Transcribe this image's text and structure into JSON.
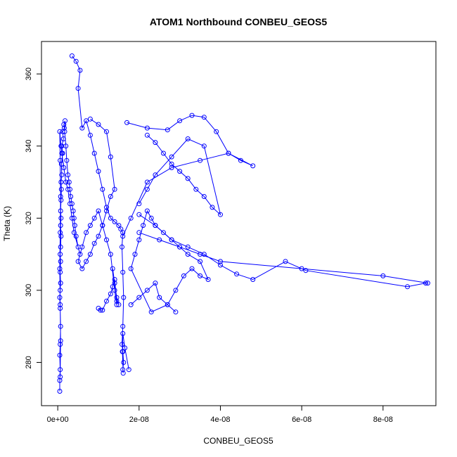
{
  "chart_data": {
    "type": "scatter",
    "title": "ATOM1 Northbound CONBEU_GEOS5",
    "xlabel": "CONBEU_GEOS5",
    "ylabel": "Theta (K)",
    "xlim": [
      -4e-09,
      9.3e-08
    ],
    "ylim": [
      268,
      369
    ],
    "x_ticks": [
      0,
      2e-08,
      4e-08,
      6e-08,
      8e-08
    ],
    "x_tick_labels": [
      "0e+00",
      "2e-08",
      "4e-08",
      "6e-08",
      "8e-08"
    ],
    "y_ticks": [
      280,
      300,
      320,
      340,
      360
    ],
    "y_tick_labels": [
      "280",
      "300",
      "320",
      "340",
      "360"
    ],
    "grid": false,
    "series": [
      {
        "color": "#0000ff",
        "marker": "open-circle",
        "connected": true,
        "x": [
          5e-10,
          5e-10,
          6e-10,
          5e-10,
          6e-10,
          7e-10,
          6e-10,
          5e-10,
          6e-10,
          7e-10,
          6e-10,
          7e-10,
          6e-10,
          7e-10,
          8e-10,
          7e-10,
          8e-10,
          7e-10,
          8e-10,
          9e-10,
          8e-10,
          1e-09,
          9e-10,
          1.2e-09,
          1e-09,
          1.4e-09,
          1.2e-09,
          1.6e-09,
          1.5e-09,
          1.8e-09,
          1.7e-09,
          2e-09,
          2.2e-09,
          2.5e-09,
          2.8e-09,
          3e-09,
          3.2e-09,
          3.5e-09,
          3.8e-09,
          4e-09,
          4.2e-09,
          4.5e-09,
          5e-09,
          5.5e-09,
          4e-09,
          3.5e-09,
          3e-09,
          2.5e-09,
          2e-09,
          1.5e-09,
          1e-09,
          8e-10,
          5e-10,
          6e-10,
          7e-10,
          6e-10,
          5e-10,
          6e-10,
          7e-10,
          6e-10
        ],
        "y": [
          272,
          275,
          278,
          282,
          285,
          290,
          295,
          298,
          300,
          302,
          305,
          308,
          310,
          312,
          315,
          318,
          320,
          322,
          325,
          328,
          330,
          332,
          335,
          338,
          340,
          342,
          344,
          345,
          346,
          347,
          344,
          340,
          336,
          332,
          330,
          328,
          326,
          324,
          322,
          320,
          318,
          315,
          312,
          310,
          316,
          320,
          324,
          328,
          330,
          334,
          338,
          340,
          344,
          336,
          326,
          316,
          306,
          296,
          286,
          276
        ]
      },
      {
        "color": "#0000ff",
        "marker": "open-circle",
        "connected": true,
        "x": [
          3.5e-09,
          4.5e-09,
          5.5e-09,
          5e-09,
          6e-09,
          7e-09,
          8e-09,
          9e-09,
          1e-08,
          1.1e-08,
          1.2e-08,
          1.3e-08,
          1.4e-08,
          1.5e-08,
          1.55e-08,
          1.6e-08,
          1.58e-08,
          1.6e-08,
          1.62e-08,
          1.6e-08,
          1.58e-08,
          1.6e-08,
          1.62e-08,
          1.6e-08,
          1.61e-08,
          1.59e-08,
          1.6e-08,
          1.65e-08,
          1.75e-08
        ],
        "y": [
          365,
          363.5,
          361,
          356,
          345,
          347,
          343,
          338,
          333,
          328,
          323,
          320,
          319,
          318,
          317,
          316,
          312,
          305,
          298,
          290,
          285,
          283,
          280,
          278,
          277,
          283,
          288,
          284,
          278
        ]
      },
      {
        "color": "#0000ff",
        "marker": "open-circle",
        "connected": true,
        "x": [
          8e-09,
          1e-08,
          1.2e-08,
          1.3e-08,
          1.4e-08,
          1.3e-08,
          1.2e-08,
          1.1e-08,
          1e-08,
          9e-09,
          8e-09,
          7e-09,
          6e-09,
          5e-09,
          6e-09,
          7e-09,
          8e-09,
          9e-09,
          1e-08,
          1.1e-08,
          1.2e-08,
          1.3e-08,
          1.4e-08,
          1.45e-08
        ],
        "y": [
          347.5,
          346,
          344,
          337,
          328,
          326,
          322,
          318,
          315,
          313,
          310,
          308,
          306,
          308,
          312,
          316,
          318,
          320,
          322,
          318,
          314,
          310,
          300,
          296
        ]
      },
      {
        "color": "#0000ff",
        "marker": "open-circle",
        "connected": true,
        "x": [
          1.7e-08,
          2.2e-08,
          2.7e-08,
          3e-08,
          3.3e-08,
          3.6e-08,
          3.9e-08,
          4.2e-08,
          4.5e-08,
          4.8e-08,
          4.2e-08,
          3.5e-08,
          2.8e-08,
          2.2e-08,
          1.8e-08,
          1.6e-08
        ],
        "y": [
          346.5,
          345,
          344.5,
          347,
          348.5,
          348,
          344,
          338,
          336,
          334.5,
          338,
          336,
          334,
          330,
          320,
          315
        ]
      },
      {
        "color": "#0000ff",
        "marker": "open-circle",
        "connected": true,
        "x": [
          2e-08,
          2.4e-08,
          2.8e-08,
          3.2e-08,
          3.6e-08,
          4e-08,
          4.4e-08,
          4.8e-08,
          5.6e-08,
          6.1e-08,
          8.6e-08,
          9.05e-08,
          9.1e-08,
          8e-08,
          6e-08,
          4e-08,
          3.5e-08,
          3e-08,
          2.5e-08,
          2e-08
        ],
        "y": [
          321,
          318,
          314,
          312,
          310,
          307,
          304.5,
          303,
          308,
          305.5,
          301,
          302,
          302,
          304,
          306,
          308,
          310,
          312,
          314,
          316
        ]
      },
      {
        "color": "#0000ff",
        "marker": "open-circle",
        "connected": true,
        "x": [
          1.8e-08,
          2e-08,
          2.2e-08,
          2.4e-08,
          2.5e-08,
          2.7e-08,
          2.9e-08,
          3.1e-08,
          3.3e-08,
          3.5e-08,
          3.7e-08,
          3.5e-08,
          3.2e-08,
          3e-08,
          2.8e-08,
          2.6e-08,
          2.4e-08,
          2.3e-08,
          2.2e-08,
          2.1e-08,
          2e-08,
          1.9e-08,
          1.8e-08,
          2.3e-08,
          2.7e-08,
          2.9e-08
        ],
        "y": [
          296,
          298,
          300,
          302,
          298,
          296,
          300,
          304,
          306,
          304,
          303,
          308,
          310,
          312,
          314,
          316,
          318,
          320,
          322,
          318,
          314,
          310,
          306,
          294,
          296,
          294
        ]
      },
      {
        "color": "#0000ff",
        "marker": "open-circle",
        "connected": true,
        "x": [
          1e-08,
          1.05e-08,
          1.1e-08,
          1.2e-08,
          1.3e-08,
          1.35e-08,
          1.4e-08,
          1.45e-08,
          1.5e-08,
          1.45e-08,
          1.4e-08,
          1.35e-08
        ],
        "y": [
          295,
          294.5,
          294.5,
          297,
          299,
          301,
          303,
          297,
          296,
          298,
          302,
          306
        ]
      },
      {
        "color": "#0000ff",
        "marker": "open-circle",
        "connected": true,
        "x": [
          2.2e-08,
          2.4e-08,
          2.6e-08,
          2.8e-08,
          3e-08,
          3.2e-08,
          3.4e-08,
          3.6e-08,
          3.8e-08,
          4e-08,
          3.6e-08,
          3.2e-08,
          2.8e-08,
          2.4e-08,
          2.2e-08,
          2e-08
        ],
        "y": [
          343,
          341,
          338,
          335,
          333,
          331,
          328,
          326,
          323,
          321,
          340,
          342,
          337,
          332,
          328,
          324
        ]
      }
    ]
  }
}
